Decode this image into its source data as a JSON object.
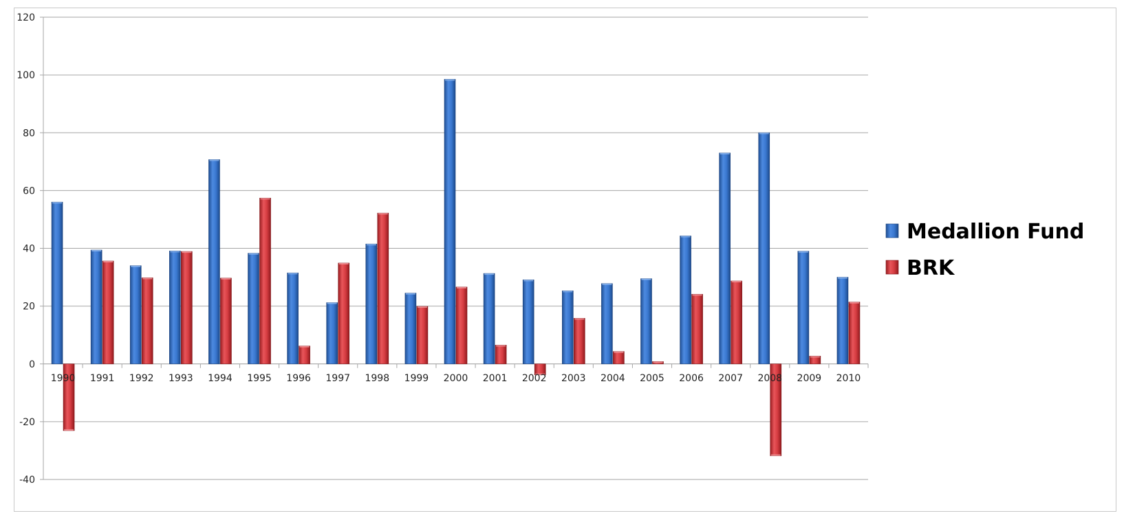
{
  "chart_data": {
    "type": "bar",
    "categories": [
      "1990",
      "1991",
      "1992",
      "1993",
      "1994",
      "1995",
      "1996",
      "1997",
      "1998",
      "1999",
      "2000",
      "2001",
      "2002",
      "2003",
      "2004",
      "2005",
      "2006",
      "2007",
      "2008",
      "2009",
      "2010"
    ],
    "series": [
      {
        "name": "Medallion Fund",
        "color": "#2f6fc4",
        "values": [
          56,
          39.4,
          34,
          39.1,
          70.7,
          38.3,
          31.5,
          21.2,
          41.5,
          24.5,
          98.5,
          31.3,
          29.1,
          25.3,
          27.8,
          29.5,
          44.3,
          73,
          80,
          39,
          30
        ]
      },
      {
        "name": "BRK",
        "color": "#d4343a",
        "values": [
          -23.1,
          35.6,
          29.8,
          38.9,
          29.7,
          57.4,
          6.2,
          34.9,
          52.2,
          19.9,
          26.6,
          6.5,
          -3.8,
          15.8,
          4.3,
          0.8,
          24.1,
          28.7,
          -31.8,
          2.7,
          21.4
        ]
      }
    ],
    "y_ticks": [
      "120",
      "100",
      "80",
      "60",
      "40",
      "20",
      "0",
      "-20",
      "-40"
    ],
    "ylim": [
      -40,
      120
    ],
    "grid": true,
    "legend_position": "right",
    "title": "",
    "xlabel": "",
    "ylabel": ""
  }
}
